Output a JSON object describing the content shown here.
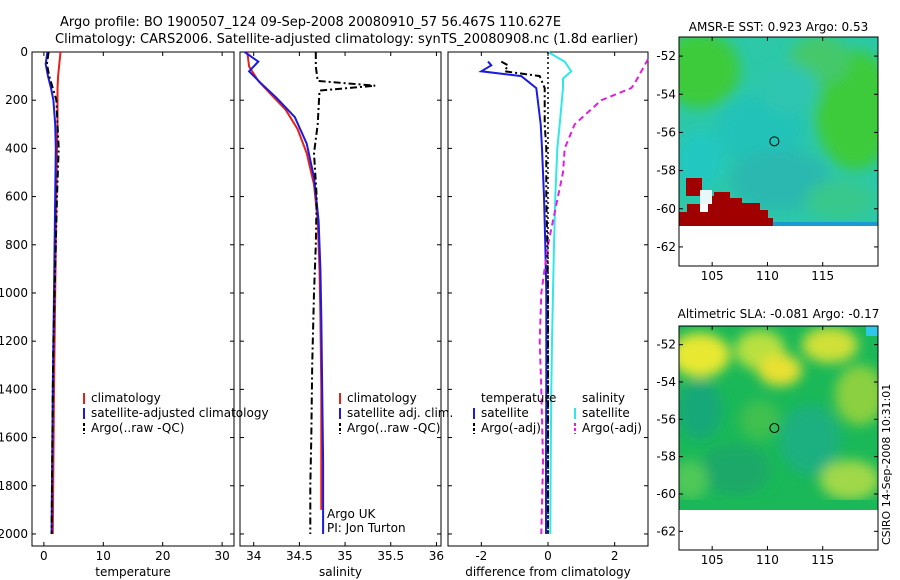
{
  "header": {
    "line1": "Argo profile: BO 1900507_124 09-Sep-2008 20080910_57 56.467S 110.627E",
    "line2": "Climatology: CARS2006. Satellite-adjusted climatology: synTS_20080908.nc (1.8d earlier)"
  },
  "side_stamp": "CSIRO 14-Sep-2008 10:31:01",
  "colors": {
    "climatology": "#e8201a",
    "satellite": "#1a1ae0",
    "argo": "#000000",
    "sal_satellite": "#30e8e8",
    "sal_argo": "#e020e0",
    "map_land": "#a00000",
    "map_water": "#30c8c8"
  },
  "chart_data": [
    {
      "type": "line",
      "panel": "temperature",
      "xlabel": "temperature",
      "ylabel": "",
      "xlim": [
        -2,
        32
      ],
      "ylim": [
        2050,
        0
      ],
      "xticks": [
        0,
        10,
        20,
        30
      ],
      "yticks": [
        0,
        200,
        400,
        600,
        800,
        1000,
        1200,
        1400,
        1600,
        1800,
        2000
      ],
      "legend": [
        "climatology",
        "satellite-adjusted climatology",
        "Argo(..raw -QC)"
      ],
      "series": [
        {
          "name": "climatology",
          "style": "solid",
          "color": "#e8201a",
          "x": [
            2.8,
            2.6,
            2.4,
            2.3,
            2.3,
            2.3,
            2.2,
            2.1,
            2.0,
            1.9,
            1.8,
            1.7,
            1.6,
            1.5
          ],
          "y": [
            0,
            50,
            100,
            150,
            200,
            300,
            400,
            600,
            800,
            1000,
            1200,
            1400,
            1700,
            2000
          ]
        },
        {
          "name": "satellite-adjusted climatology",
          "style": "solid",
          "color": "#1a1ae0",
          "x": [
            0.6,
            0.3,
            0.7,
            1.2,
            1.6,
            1.9,
            2.0,
            1.9,
            1.8,
            1.7,
            1.6,
            1.5,
            1.4,
            1.3
          ],
          "y": [
            0,
            50,
            100,
            150,
            200,
            300,
            400,
            600,
            800,
            1000,
            1200,
            1400,
            1700,
            2000
          ]
        },
        {
          "name": "Argo(..raw -QC)",
          "style": "dashdot",
          "color": "#000000",
          "x": [
            0.8,
            0.5,
            0.9,
            1.5,
            2.1,
            2.3,
            2.5,
            2.2,
            2.0,
            1.8,
            1.6,
            1.5,
            1.4,
            1.3
          ],
          "y": [
            0,
            50,
            100,
            150,
            200,
            300,
            400,
            600,
            800,
            1000,
            1200,
            1400,
            1700,
            2000
          ]
        }
      ]
    },
    {
      "type": "line",
      "panel": "salinity",
      "xlabel": "salinity",
      "ylabel": "",
      "xlim": [
        33.85,
        36.05
      ],
      "ylim": [
        2050,
        0
      ],
      "xticks": [
        34,
        34.5,
        35,
        35.5,
        36
      ],
      "xticklabels": [
        "34",
        "34.5",
        "35",
        "35.5",
        "36"
      ],
      "legend": [
        "climatology",
        "satellite adj. clim.",
        "Argo(..raw -QC)"
      ],
      "annotation": [
        "Argo UK",
        "PI: Jon Turton"
      ],
      "series": [
        {
          "name": "climatology",
          "style": "solid",
          "color": "#e8201a",
          "x": [
            33.93,
            33.95,
            34.05,
            34.2,
            34.35,
            34.48,
            34.58,
            34.66,
            34.7,
            34.72,
            34.73,
            34.74,
            34.74,
            34.74
          ],
          "y": [
            0,
            60,
            120,
            180,
            240,
            320,
            420,
            550,
            700,
            900,
            1100,
            1400,
            1700,
            1900
          ]
        },
        {
          "name": "satellite adj. clim.",
          "style": "solid",
          "color": "#1a1ae0",
          "x": [
            33.9,
            34.05,
            33.95,
            34.08,
            34.25,
            34.45,
            34.58,
            34.66,
            34.71,
            34.73,
            34.74,
            34.75,
            34.76,
            34.76
          ],
          "y": [
            0,
            40,
            80,
            130,
            190,
            270,
            380,
            520,
            700,
            900,
            1100,
            1400,
            1700,
            2000
          ]
        },
        {
          "name": "Argo(..raw -QC)",
          "style": "dashdot",
          "color": "#000000",
          "x": [
            34.68,
            34.68,
            34.7,
            35.33,
            34.72,
            34.7,
            34.66,
            34.69,
            34.68,
            34.66,
            34.64,
            34.63,
            34.62,
            34.62
          ],
          "y": [
            0,
            60,
            120,
            140,
            160,
            300,
            420,
            600,
            800,
            1000,
            1300,
            1600,
            1800,
            2000
          ]
        }
      ]
    },
    {
      "type": "line",
      "panel": "difference",
      "xlabel": "difference from climatology",
      "ylabel": "",
      "xlim": [
        -3.0,
        3.0
      ],
      "ylim": [
        2050,
        0
      ],
      "xticks": [
        -2,
        0,
        2
      ],
      "legend_left": {
        "heading": "temperature",
        "items": [
          "satellite",
          "Argo(-adj)"
        ]
      },
      "legend_right": {
        "heading": "salinity",
        "items": [
          "satellite",
          "Argo(-adj)"
        ]
      },
      "series": [
        {
          "name": "satellite",
          "group": "temperature",
          "style": "solid",
          "color": "#1a1ae0",
          "x": [
            -1.8,
            -1.7,
            -2.0,
            -0.8,
            -0.35,
            -0.22,
            -0.18,
            -0.12,
            -0.08,
            -0.05,
            -0.05,
            -0.05,
            -0.06,
            -0.06
          ],
          "y": [
            40,
            55,
            80,
            100,
            150,
            300,
            400,
            600,
            800,
            1000,
            1200,
            1400,
            1700,
            2000
          ]
        },
        {
          "name": "Argo(-adj)",
          "group": "temperature",
          "style": "dashdot",
          "color": "#000000",
          "x": [
            -1.4,
            -1.2,
            -1.3,
            -0.25,
            -0.1,
            -0.1,
            -0.05,
            -0.05,
            -0.02,
            0.0,
            0.0,
            0.0,
            0.0,
            0.0
          ],
          "y": [
            40,
            55,
            80,
            100,
            150,
            300,
            400,
            600,
            800,
            1000,
            1200,
            1400,
            1700,
            2000
          ]
        },
        {
          "name": "satellite",
          "group": "salinity",
          "style": "solid",
          "color": "#30e8e8",
          "x": [
            0.0,
            0.5,
            0.7,
            0.45,
            0.45,
            0.35,
            0.28,
            0.22,
            0.18,
            0.15,
            0.12,
            0.1,
            0.08,
            0.07
          ],
          "y": [
            0,
            40,
            80,
            110,
            150,
            300,
            400,
            600,
            800,
            1000,
            1200,
            1400,
            1700,
            2000
          ]
        },
        {
          "name": "Argo(-adj)",
          "group": "salinity",
          "style": "dashed",
          "color": "#e020e0",
          "x": [
            3.0,
            2.6,
            2.5,
            1.6,
            0.8,
            0.5,
            0.45,
            0.3,
            0.0,
            -0.2,
            -0.25,
            -0.2,
            -0.15,
            -0.2
          ],
          "y": [
            30,
            130,
            150,
            200,
            300,
            400,
            500,
            600,
            800,
            1000,
            1200,
            1400,
            1700,
            2000
          ]
        },
        {
          "name": "",
          "group": "reference",
          "style": "dotted",
          "color": "#000000",
          "x": [
            0,
            0
          ],
          "y": [
            0,
            2000
          ]
        }
      ]
    },
    {
      "type": "heatmap",
      "panel": "sst-map",
      "title": "AMSR-E SST: 0.923 Argo: 0.53",
      "xlim": [
        102,
        120
      ],
      "ylim": [
        -63,
        -51
      ],
      "xticks": [
        105,
        110,
        115
      ],
      "yticks": [
        -52,
        -54,
        -56,
        -58,
        -60,
        -62
      ],
      "marker": {
        "lon": 110.627,
        "lat": -56.467
      }
    },
    {
      "type": "heatmap",
      "panel": "sla-map",
      "title": "Altimetric SLA: -0.081 Argo: -0.17",
      "xlim": [
        102,
        120
      ],
      "ylim": [
        -63,
        -51
      ],
      "xticks": [
        105,
        110,
        115
      ],
      "yticks": [
        -52,
        -54,
        -56,
        -58,
        -60,
        -62
      ],
      "marker": {
        "lon": 110.627,
        "lat": -56.467
      }
    }
  ]
}
